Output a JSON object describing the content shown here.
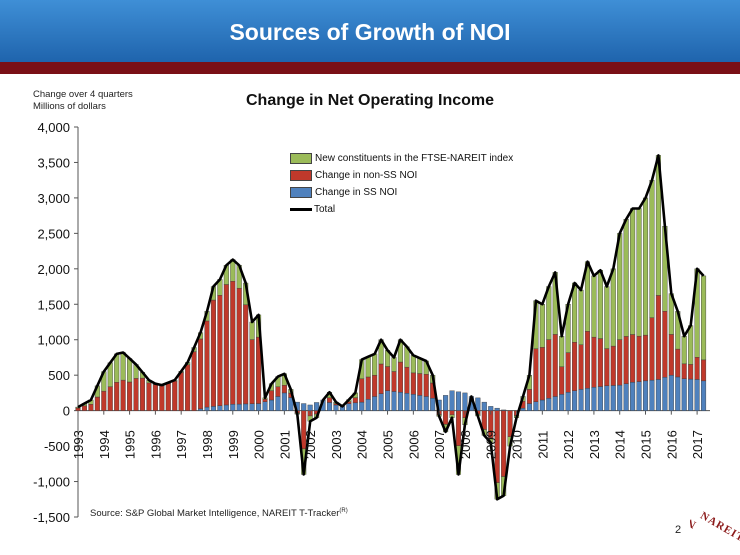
{
  "header": {
    "title": "Sources of Growth of NOI"
  },
  "units_line1": "Change over 4 quarters",
  "units_line2": "Millions of dollars",
  "source": "Source: S&P Global Market Intelligence, NAREIT T-Tracker",
  "source_mark": "(R)",
  "page_number": "2",
  "logo_text": "NAREIT",
  "colors": {
    "new_constituents": "#9bbb59",
    "non_ss": "#c0392b",
    "ss": "#4f81bd",
    "total": "#000000",
    "banner": "#2a72c0",
    "rule": "#7a0f16"
  },
  "chart_data": {
    "type": "bar",
    "stacked": true,
    "title": "Change in Net Operating Income",
    "ylim": [
      -1500,
      4000
    ],
    "yticks": [
      "4,000",
      "3,500",
      "3,000",
      "2,500",
      "2,000",
      "1,500",
      "1,000",
      "500",
      "0",
      "-500",
      "-1,000",
      "-1,500"
    ],
    "ytick_values": [
      4000,
      3500,
      3000,
      2500,
      2000,
      1500,
      1000,
      500,
      0,
      -500,
      -1000,
      -1500
    ],
    "xticks": [
      "1993",
      "1994",
      "1995",
      "1996",
      "1997",
      "1998",
      "1999",
      "2000",
      "2001",
      "2002",
      "2003",
      "2004",
      "2005",
      "2006",
      "2007",
      "2008",
      "2009",
      "2010",
      "2011",
      "2012",
      "2013",
      "2014",
      "2015",
      "2016",
      "2017"
    ],
    "legend": [
      {
        "label": "New constituents in the FTSE-NAREIT index",
        "kind": "bar",
        "color": "#9bbb59"
      },
      {
        "label": "Change in non-SS NOI",
        "kind": "bar",
        "color": "#c0392b"
      },
      {
        "label": "Change in SS NOI",
        "kind": "bar",
        "color": "#4f81bd"
      },
      {
        "label": "Total",
        "kind": "line",
        "color": "#000000"
      }
    ],
    "total_anchors": [
      [
        1993.0,
        50
      ],
      [
        1993.5,
        150
      ],
      [
        1994.0,
        550
      ],
      [
        1994.5,
        800
      ],
      [
        1994.75,
        820
      ],
      [
        1995.25,
        650
      ],
      [
        1995.75,
        430
      ],
      [
        1996.0,
        380
      ],
      [
        1996.25,
        360
      ],
      [
        1996.75,
        430
      ],
      [
        1997.25,
        680
      ],
      [
        1997.75,
        1100
      ],
      [
        1998.0,
        1400
      ],
      [
        1998.25,
        1750
      ],
      [
        1998.5,
        1850
      ],
      [
        1998.75,
        2050
      ],
      [
        1999.0,
        2130
      ],
      [
        1999.25,
        2050
      ],
      [
        1999.5,
        1800
      ],
      [
        1999.75,
        1250
      ],
      [
        2000.0,
        1350
      ],
      [
        2000.25,
        180
      ],
      [
        2000.5,
        380
      ],
      [
        2000.75,
        480
      ],
      [
        2001.0,
        520
      ],
      [
        2001.25,
        300
      ],
      [
        2001.5,
        -50
      ],
      [
        2001.75,
        -900
      ],
      [
        2002.0,
        -150
      ],
      [
        2002.25,
        -100
      ],
      [
        2002.5,
        150
      ],
      [
        2002.75,
        260
      ],
      [
        2003.0,
        120
      ],
      [
        2003.25,
        60
      ],
      [
        2003.75,
        250
      ],
      [
        2004.0,
        720
      ],
      [
        2004.5,
        800
      ],
      [
        2004.75,
        1000
      ],
      [
        2005.0,
        850
      ],
      [
        2005.25,
        750
      ],
      [
        2005.5,
        1000
      ],
      [
        2005.75,
        900
      ],
      [
        2006.0,
        780
      ],
      [
        2006.5,
        700
      ],
      [
        2006.75,
        500
      ],
      [
        2007.0,
        -80
      ],
      [
        2007.25,
        -300
      ],
      [
        2007.5,
        -100
      ],
      [
        2007.75,
        -900
      ],
      [
        2008.0,
        -200
      ],
      [
        2008.25,
        200
      ],
      [
        2008.75,
        -350
      ],
      [
        2009.0,
        -450
      ],
      [
        2009.25,
        -1250
      ],
      [
        2009.5,
        -1200
      ],
      [
        2009.75,
        -500
      ],
      [
        2010.0,
        -100
      ],
      [
        2010.25,
        200
      ],
      [
        2010.5,
        500
      ],
      [
        2010.75,
        1550
      ],
      [
        2011.0,
        1500
      ],
      [
        2011.25,
        1750
      ],
      [
        2011.5,
        1950
      ],
      [
        2011.75,
        1050
      ],
      [
        2012.0,
        1500
      ],
      [
        2012.25,
        1800
      ],
      [
        2012.5,
        1700
      ],
      [
        2012.75,
        2100
      ],
      [
        2013.0,
        1900
      ],
      [
        2013.25,
        1980
      ],
      [
        2013.5,
        1750
      ],
      [
        2013.75,
        2000
      ],
      [
        2014.0,
        2500
      ],
      [
        2014.25,
        2700
      ],
      [
        2014.5,
        2850
      ],
      [
        2014.75,
        2850
      ],
      [
        2015.0,
        3000
      ],
      [
        2015.25,
        3250
      ],
      [
        2015.5,
        3600
      ],
      [
        2015.75,
        2600
      ],
      [
        2016.0,
        1650
      ],
      [
        2016.25,
        1400
      ],
      [
        2016.5,
        1050
      ],
      [
        2016.75,
        1200
      ],
      [
        2017.0,
        2000
      ],
      [
        2017.25,
        1900
      ]
    ],
    "ss_anchors": [
      [
        1993.0,
        0
      ],
      [
        1997.5,
        0
      ],
      [
        1998.0,
        50
      ],
      [
        1999.0,
        90
      ],
      [
        2000.0,
        100
      ],
      [
        2000.5,
        150
      ],
      [
        2001.0,
        250
      ],
      [
        2001.5,
        120
      ],
      [
        2002.0,
        80
      ],
      [
        2002.5,
        150
      ],
      [
        2003.0,
        80
      ],
      [
        2004.0,
        120
      ],
      [
        2004.5,
        200
      ],
      [
        2005.0,
        280
      ],
      [
        2005.5,
        260
      ],
      [
        2006.0,
        230
      ],
      [
        2006.5,
        200
      ],
      [
        2007.0,
        150
      ],
      [
        2007.5,
        280
      ],
      [
        2008.0,
        250
      ],
      [
        2008.5,
        180
      ],
      [
        2009.0,
        60
      ],
      [
        2009.5,
        10
      ],
      [
        2010.0,
        -30
      ],
      [
        2010.5,
        100
      ],
      [
        2011.0,
        150
      ],
      [
        2011.5,
        200
      ],
      [
        2012.0,
        260
      ],
      [
        2012.5,
        300
      ],
      [
        2013.0,
        330
      ],
      [
        2013.5,
        350
      ],
      [
        2014.0,
        360
      ],
      [
        2014.5,
        400
      ],
      [
        2015.0,
        420
      ],
      [
        2015.5,
        440
      ],
      [
        2016.0,
        500
      ],
      [
        2016.5,
        450
      ],
      [
        2017.0,
        440
      ],
      [
        2017.25,
        420
      ]
    ],
    "non_ss_share_anchors": [
      [
        1993.0,
        0.75
      ],
      [
        1993.5,
        0.6
      ],
      [
        1994.0,
        0.5
      ],
      [
        1994.5,
        0.5
      ],
      [
        1995.0,
        0.55
      ],
      [
        1995.5,
        0.85
      ],
      [
        1996.0,
        0.97
      ],
      [
        1997.0,
        0.97
      ],
      [
        1998.0,
        0.9
      ],
      [
        1999.0,
        0.85
      ],
      [
        1999.5,
        0.82
      ],
      [
        2000.0,
        0.75
      ],
      [
        2001.0,
        0.4
      ],
      [
        2001.5,
        0.7
      ],
      [
        2002.0,
        0.5
      ],
      [
        2003.0,
        0.45
      ],
      [
        2004.0,
        0.55
      ],
      [
        2004.5,
        0.5
      ],
      [
        2005.0,
        0.6
      ],
      [
        2006.0,
        0.55
      ],
      [
        2007.0,
        0.7
      ],
      [
        2008.0,
        0.5
      ],
      [
        2009.0,
        0.85
      ],
      [
        2010.0,
        0.7
      ],
      [
        2010.5,
        0.5
      ],
      [
        2011.0,
        0.55
      ],
      [
        2012.0,
        0.45
      ],
      [
        2013.0,
        0.45
      ],
      [
        2014.0,
        0.3
      ],
      [
        2015.0,
        0.25
      ],
      [
        2016.0,
        0.5
      ],
      [
        2017.0,
        0.2
      ],
      [
        2017.25,
        0.2
      ]
    ]
  }
}
